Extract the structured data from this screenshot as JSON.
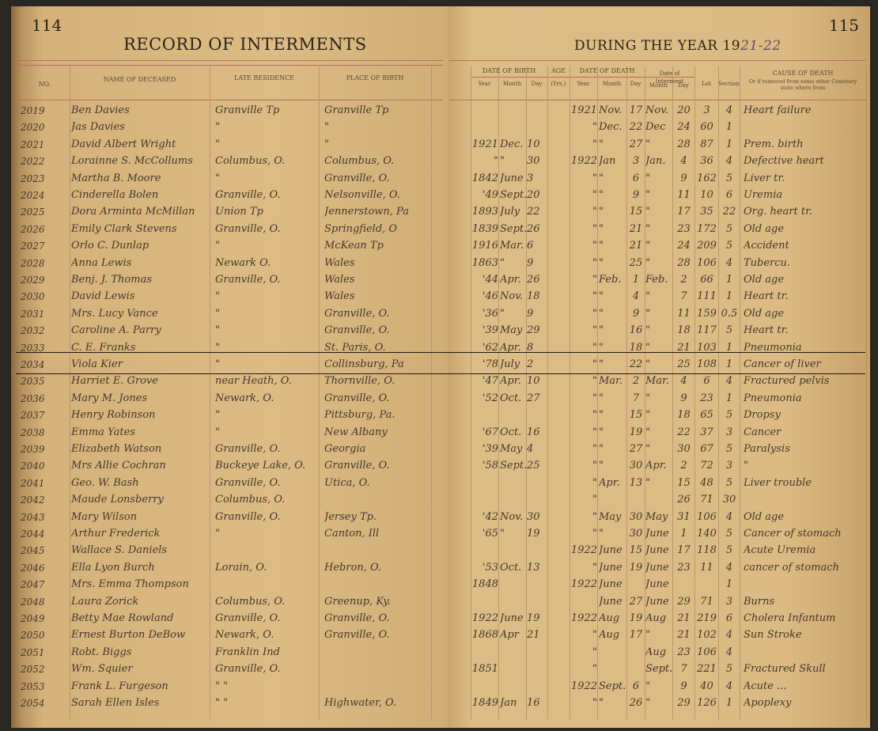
{
  "left_page": {
    "page_number": "114",
    "title": "RECORD OF INTERMENTS",
    "headers": {
      "no": "No.",
      "name": "NAME OF DECEASED",
      "residence": "LATE RESIDENCE",
      "birthplace": "PLACE OF BIRTH"
    }
  },
  "right_page": {
    "page_number": "115",
    "title_prefix": "DURING THE YEAR 19",
    "title_year_handwritten": "21-22",
    "headers": {
      "date_of_birth": "DATE OF BIRTH",
      "age": "AGE",
      "date_of_death": "DATE OF DEATH",
      "date_of_interment": "Date of Interment",
      "year": "Year",
      "month": "Month",
      "day": "Day",
      "age_unit": "(Yrs.)",
      "lot": "Lot",
      "section": "Section",
      "cause": "CAUSE OF DEATH",
      "cause_note": "Or if removed from some other Cemetery state where from"
    }
  },
  "rows": [
    {
      "no": "2019",
      "name": "Ben Davies",
      "res": "Granville Tp",
      "birth": "Granville Tp",
      "by": "",
      "bm": "",
      "bd": "",
      "age": "",
      "dy": "1921",
      "dm": "Nov.",
      "dd": "17",
      "im": "Nov.",
      "id": "20",
      "lot": "3",
      "sec": "4",
      "cause": "Heart failure"
    },
    {
      "no": "2020",
      "name": "Jas Davies",
      "res": "\"",
      "birth": "\"",
      "by": "",
      "bm": "",
      "bd": "",
      "age": "",
      "dy": "\"",
      "dm": "Dec.",
      "dd": "22",
      "im": "Dec",
      "id": "24",
      "lot": "60",
      "sec": "1",
      "cause": ""
    },
    {
      "no": "2021",
      "name": "David Albert Wright",
      "res": "\"",
      "birth": "\"",
      "by": "1921",
      "bm": "Dec.",
      "bd": "10",
      "age": "",
      "dy": "\"",
      "dm": "\"",
      "dd": "27",
      "im": "\"",
      "id": "28",
      "lot": "87",
      "sec": "1",
      "cause": "Prem. birth"
    },
    {
      "no": "2022",
      "name": "Lorainne S. McCollums",
      "res": "Columbus, O.",
      "birth": "Columbus, O.",
      "by": "\"",
      "bm": "\"",
      "bd": "30",
      "age": "",
      "dy": "1922",
      "dm": "Jan",
      "dd": "3",
      "im": "Jan.",
      "id": "4",
      "lot": "36",
      "sec": "4",
      "cause": "Defective heart"
    },
    {
      "no": "2023",
      "name": "Martha B. Moore",
      "res": "\"",
      "birth": "Granville, O.",
      "by": "1842",
      "bm": "June",
      "bd": "3",
      "age": "",
      "dy": "\"",
      "dm": "\"",
      "dd": "6",
      "im": "\"",
      "id": "9",
      "lot": "162",
      "sec": "5",
      "cause": "Liver tr."
    },
    {
      "no": "2024",
      "name": "Cinderella Bolen",
      "res": "Granville, O.",
      "birth": "Nelsonville, O.",
      "by": "'49",
      "bm": "Sept.",
      "bd": "20",
      "age": "",
      "dy": "\"",
      "dm": "\"",
      "dd": "9",
      "im": "\"",
      "id": "11",
      "lot": "10",
      "sec": "6",
      "cause": "Uremia"
    },
    {
      "no": "2025",
      "name": "Dora Arminta McMillan",
      "res": "Union Tp",
      "birth": "Jennerstown, Pa",
      "by": "1893",
      "bm": "July",
      "bd": "22",
      "age": "",
      "dy": "\"",
      "dm": "\"",
      "dd": "15",
      "im": "\"",
      "id": "17",
      "lot": "35",
      "sec": "22",
      "cause": "Org. heart tr."
    },
    {
      "no": "2026",
      "name": "Emily Clark Stevens",
      "res": "Granville, O.",
      "birth": "Springfield, O",
      "by": "1839",
      "bm": "Sept.",
      "bd": "26",
      "age": "",
      "dy": "\"",
      "dm": "\"",
      "dd": "21",
      "im": "\"",
      "id": "23",
      "lot": "172",
      "sec": "5",
      "cause": "Old age"
    },
    {
      "no": "2027",
      "name": "Orlo C. Dunlap",
      "res": "\"",
      "birth": "McKean Tp",
      "by": "1916",
      "bm": "Mar.",
      "bd": "6",
      "age": "",
      "dy": "\"",
      "dm": "\"",
      "dd": "21",
      "im": "\"",
      "id": "24",
      "lot": "209",
      "sec": "5",
      "cause": "Accident"
    },
    {
      "no": "2028",
      "name": "Anna Lewis",
      "res": "Newark O.",
      "birth": "Wales",
      "by": "1863",
      "bm": "\"",
      "bd": "9",
      "age": "",
      "dy": "\"",
      "dm": "\"",
      "dd": "25",
      "im": "\"",
      "id": "28",
      "lot": "106",
      "sec": "4",
      "cause": "Tubercu."
    },
    {
      "no": "2029",
      "name": "Benj. J. Thomas",
      "res": "Granville, O.",
      "birth": "Wales",
      "by": "'44",
      "bm": "Apr.",
      "bd": "26",
      "age": "",
      "dy": "\"",
      "dm": "Feb.",
      "dd": "1",
      "im": "Feb.",
      "id": "2",
      "lot": "66",
      "sec": "1",
      "cause": "Old age"
    },
    {
      "no": "2030",
      "name": "David Lewis",
      "res": "\"",
      "birth": "Wales",
      "by": "'46",
      "bm": "Nov.",
      "bd": "18",
      "age": "",
      "dy": "\"",
      "dm": "\"",
      "dd": "4",
      "im": "\"",
      "id": "7",
      "lot": "111",
      "sec": "1",
      "cause": "Heart tr."
    },
    {
      "no": "2031",
      "name": "Mrs. Lucy Vance",
      "res": "\"",
      "birth": "Granville, O.",
      "by": "'36",
      "bm": "\"",
      "bd": "9",
      "age": "",
      "dy": "\"",
      "dm": "\"",
      "dd": "9",
      "im": "\"",
      "id": "11",
      "lot": "159",
      "sec": "0.5",
      "cause": "Old age"
    },
    {
      "no": "2032",
      "name": "Caroline A. Parry",
      "res": "\"",
      "birth": "Granville, O.",
      "by": "'39",
      "bm": "May",
      "bd": "29",
      "age": "",
      "dy": "\"",
      "dm": "\"",
      "dd": "16",
      "im": "\"",
      "id": "18",
      "lot": "117",
      "sec": "5",
      "cause": "Heart tr."
    },
    {
      "no": "2033",
      "name": "C. E. Franks",
      "res": "\"",
      "birth": "St. Paris, O.",
      "by": "'62",
      "bm": "Apr.",
      "bd": "8",
      "age": "",
      "dy": "\"",
      "dm": "\"",
      "dd": "18",
      "im": "\"",
      "id": "21",
      "lot": "103",
      "sec": "1",
      "cause": "Pneumonia"
    },
    {
      "no": "2034",
      "name": "Viola Kier",
      "res": "\"",
      "birth": "Collinsburg, Pa",
      "by": "'78",
      "bm": "July",
      "bd": "2",
      "age": "",
      "dy": "\"",
      "dm": "\"",
      "dd": "22",
      "im": "\"",
      "id": "25",
      "lot": "108",
      "sec": "1",
      "cause": "Cancer of liver"
    },
    {
      "no": "2035",
      "name": "Harriet E. Grove",
      "res": "near Heath, O.",
      "birth": "Thornville, O.",
      "by": "'47",
      "bm": "Apr.",
      "bd": "10",
      "age": "",
      "dy": "\"",
      "dm": "Mar.",
      "dd": "2",
      "im": "Mar.",
      "id": "4",
      "lot": "6",
      "sec": "4",
      "cause": "Fractured pelvis"
    },
    {
      "no": "2036",
      "name": "Mary M. Jones",
      "res": "Newark, O.",
      "birth": "Granville, O.",
      "by": "'52",
      "bm": "Oct.",
      "bd": "27",
      "age": "",
      "dy": "\"",
      "dm": "\"",
      "dd": "7",
      "im": "\"",
      "id": "9",
      "lot": "23",
      "sec": "1",
      "cause": "Pneumonia"
    },
    {
      "no": "2037",
      "name": "Henry Robinson",
      "res": "\"",
      "birth": "Pittsburg, Pa.",
      "by": "",
      "bm": "",
      "bd": "",
      "age": "",
      "dy": "\"",
      "dm": "\"",
      "dd": "15",
      "im": "\"",
      "id": "18",
      "lot": "65",
      "sec": "5",
      "cause": "Dropsy"
    },
    {
      "no": "2038",
      "name": "Emma Yates",
      "res": "\"",
      "birth": "New Albany",
      "by": "'67",
      "bm": "Oct.",
      "bd": "16",
      "age": "",
      "dy": "\"",
      "dm": "\"",
      "dd": "19",
      "im": "\"",
      "id": "22",
      "lot": "37",
      "sec": "3",
      "cause": "Cancer"
    },
    {
      "no": "2039",
      "name": "Elizabeth Watson",
      "res": "Granville, O.",
      "birth": "Georgia",
      "by": "'39",
      "bm": "May",
      "bd": "4",
      "age": "",
      "dy": "\"",
      "dm": "\"",
      "dd": "27",
      "im": "\"",
      "id": "30",
      "lot": "67",
      "sec": "5",
      "cause": "Paralysis"
    },
    {
      "no": "2040",
      "name": "Mrs Allie Cochran",
      "res": "Buckeye Lake, O.",
      "birth": "Granville, O.",
      "by": "'58",
      "bm": "Sept.",
      "bd": "25",
      "age": "",
      "dy": "\"",
      "dm": "\"",
      "dd": "30",
      "im": "Apr.",
      "id": "2",
      "lot": "72",
      "sec": "3",
      "cause": "\""
    },
    {
      "no": "2041",
      "name": "Geo. W. Bash",
      "res": "Granville, O.",
      "birth": "Utica, O.",
      "by": "",
      "bm": "",
      "bd": "",
      "age": "",
      "dy": "\"",
      "dm": "Apr.",
      "dd": "13",
      "im": "\"",
      "id": "15",
      "lot": "48",
      "sec": "5",
      "cause": "Liver trouble"
    },
    {
      "no": "2042",
      "name": "Maude Lonsberry",
      "res": "Columbus, O.",
      "birth": "",
      "by": "",
      "bm": "",
      "bd": "",
      "age": "",
      "dy": "\"",
      "dm": "",
      "dd": "",
      "im": "",
      "id": "26",
      "lot": "71",
      "sec": "30",
      "cause": ""
    },
    {
      "no": "2043",
      "name": "Mary Wilson",
      "res": "Granville, O.",
      "birth": "Jersey Tp.",
      "by": "'42",
      "bm": "Nov.",
      "bd": "30",
      "age": "",
      "dy": "\"",
      "dm": "May",
      "dd": "30",
      "im": "May",
      "id": "31",
      "lot": "106",
      "sec": "4",
      "cause": "Old age"
    },
    {
      "no": "2044",
      "name": "Arthur Frederick",
      "res": "\"",
      "birth": "Canton, Ill",
      "by": "'65",
      "bm": "\"",
      "bd": "19",
      "age": "",
      "dy": "\"",
      "dm": "\"",
      "dd": "30",
      "im": "June",
      "id": "1",
      "lot": "140",
      "sec": "5",
      "cause": "Cancer of stomach"
    },
    {
      "no": "2045",
      "name": "Wallace S. Daniels",
      "res": "",
      "birth": "",
      "by": "",
      "bm": "",
      "bd": "",
      "age": "",
      "dy": "1922",
      "dm": "June",
      "dd": "15",
      "im": "June",
      "id": "17",
      "lot": "118",
      "sec": "5",
      "cause": "Acute Uremia"
    },
    {
      "no": "2046",
      "name": "Ella Lyon Burch",
      "res": "Lorain, O.",
      "birth": "Hebron, O.",
      "by": "'53",
      "bm": "Oct.",
      "bd": "13",
      "age": "",
      "dy": "\"",
      "dm": "June",
      "dd": "19",
      "im": "June",
      "id": "23",
      "lot": "11",
      "sec": "4",
      "cause": "cancer of stomach"
    },
    {
      "no": "2047",
      "name": "Mrs. Emma Thompson",
      "res": "",
      "birth": "",
      "by": "1848",
      "bm": "",
      "bd": "",
      "age": "",
      "dy": "1922",
      "dm": "June",
      "dd": "",
      "im": "June",
      "id": "",
      "lot": "",
      "sec": "1",
      "cause": ""
    },
    {
      "no": "2048",
      "name": "Laura Zorick",
      "res": "Columbus, O.",
      "birth": "Greenup, Ky.",
      "by": "",
      "bm": "",
      "bd": "",
      "age": "",
      "dy": "",
      "dm": "June",
      "dd": "27",
      "im": "June",
      "id": "29",
      "lot": "71",
      "sec": "3",
      "cause": "Burns"
    },
    {
      "no": "2049",
      "name": "Betty Mae Rowland",
      "res": "Granville, O.",
      "birth": "Granville, O.",
      "by": "1922",
      "bm": "June",
      "bd": "19",
      "age": "",
      "dy": "1922",
      "dm": "Aug",
      "dd": "19",
      "im": "Aug",
      "id": "21",
      "lot": "219",
      "sec": "6",
      "cause": "Cholera Infantum"
    },
    {
      "no": "2050",
      "name": "Ernest Burton DeBow",
      "res": "Newark, O.",
      "birth": "Granville, O.",
      "by": "1868",
      "bm": "Apr",
      "bd": "21",
      "age": "",
      "dy": "\"",
      "dm": "Aug",
      "dd": "17",
      "im": "\"",
      "id": "21",
      "lot": "102",
      "sec": "4",
      "cause": "Sun Stroke"
    },
    {
      "no": "2051",
      "name": "Robt. Biggs",
      "res": "Franklin Ind",
      "birth": "",
      "by": "",
      "bm": "",
      "bd": "",
      "age": "",
      "dy": "\"",
      "dm": "",
      "dd": "",
      "im": "Aug",
      "id": "23",
      "lot": "106",
      "sec": "4",
      "cause": ""
    },
    {
      "no": "2052",
      "name": "Wm. Squier",
      "res": "Granville, O.",
      "birth": "",
      "by": "1851",
      "bm": "",
      "bd": "",
      "age": "",
      "dy": "\"",
      "dm": "",
      "dd": "",
      "im": "Sept.",
      "id": "7",
      "lot": "221",
      "sec": "5",
      "cause": "Fractured Skull"
    },
    {
      "no": "2053",
      "name": "Frank L. Furgeson",
      "res": "\" \"",
      "birth": "",
      "by": "",
      "bm": "",
      "bd": "",
      "age": "",
      "dy": "1922",
      "dm": "Sept.",
      "dd": "6",
      "im": "\"",
      "id": "9",
      "lot": "40",
      "sec": "4",
      "cause": "Acute ..."
    },
    {
      "no": "2054",
      "name": "Sarah Ellen Isles",
      "res": "\" \"",
      "birth": "Highwater, O.",
      "by": "1849",
      "bm": "Jan",
      "bd": "16",
      "age": "",
      "dy": "\"",
      "dm": "\"",
      "dd": "26",
      "im": "\"",
      "id": "29",
      "lot": "126",
      "sec": "1",
      "cause": "Apoplexy"
    }
  ]
}
